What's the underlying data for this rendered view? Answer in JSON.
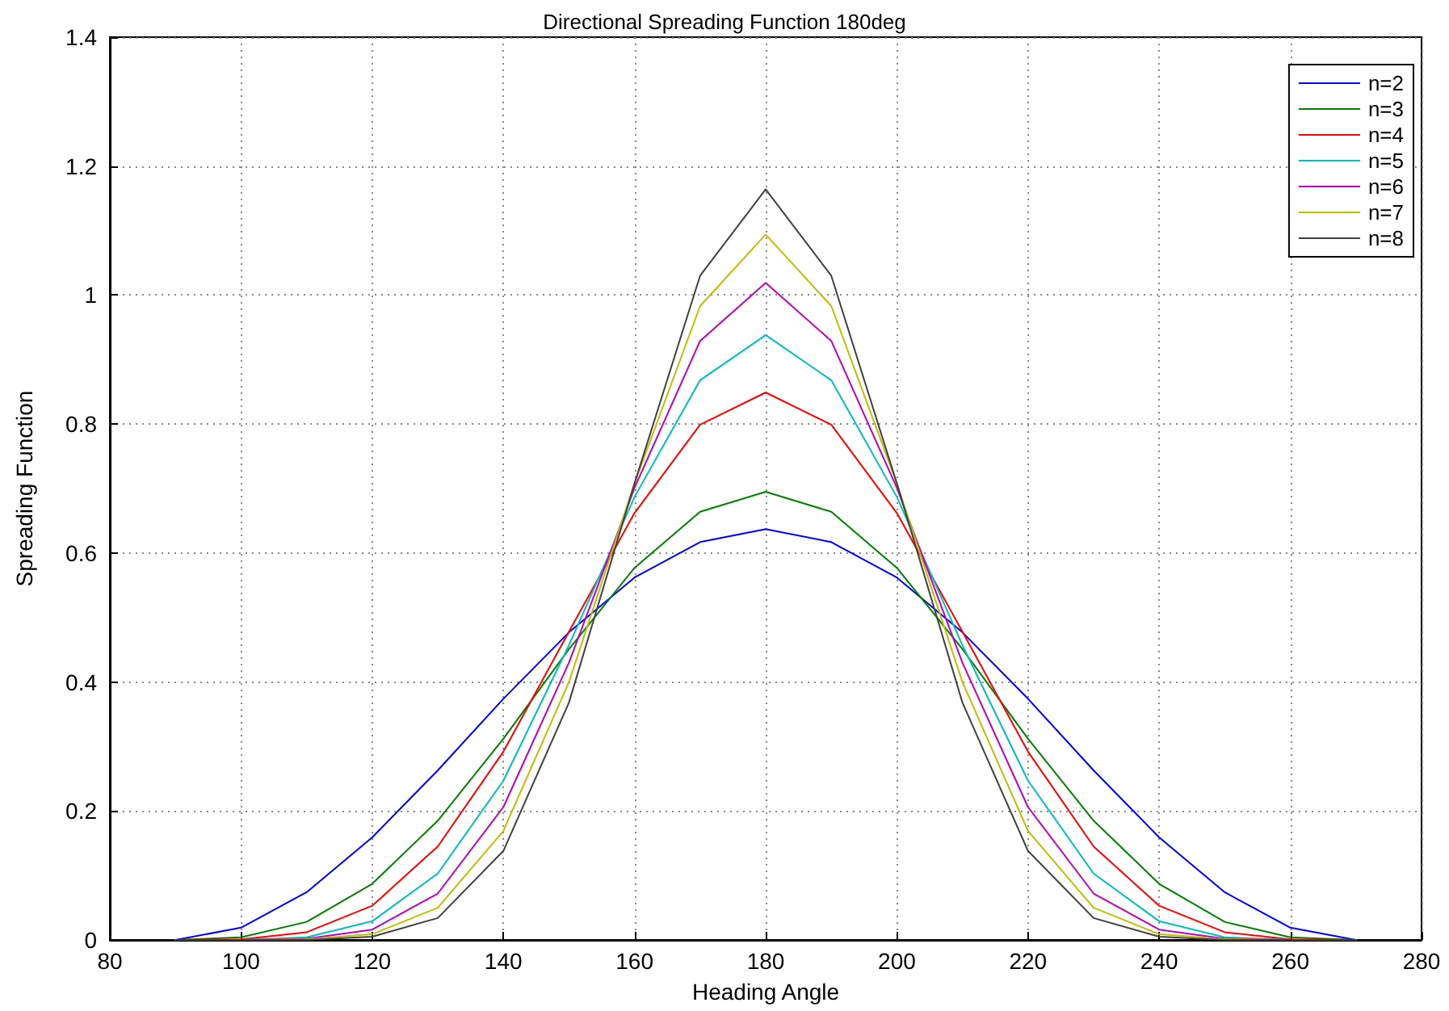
{
  "chart_data": {
    "type": "line",
    "title": "Directional Spreading Function 180deg",
    "xlabel": "Heading Angle",
    "ylabel": "Spreading Function",
    "x": [
      90,
      100,
      110,
      120,
      130,
      140,
      150,
      160,
      170,
      180,
      190,
      200,
      210,
      220,
      230,
      240,
      250,
      260,
      270
    ],
    "series": [
      {
        "name": "n=2",
        "color": "#0000ff",
        "values": [
          0,
          0.019,
          0.074,
          0.159,
          0.263,
          0.374,
          0.477,
          0.562,
          0.617,
          0.637,
          0.617,
          0.562,
          0.477,
          0.374,
          0.263,
          0.159,
          0.074,
          0.019,
          0
        ]
      },
      {
        "name": "n=3",
        "color": "#008000",
        "values": [
          0,
          0.004,
          0.028,
          0.087,
          0.185,
          0.312,
          0.451,
          0.577,
          0.664,
          0.695,
          0.664,
          0.577,
          0.451,
          0.312,
          0.185,
          0.087,
          0.028,
          0.004,
          0
        ]
      },
      {
        "name": "n=4",
        "color": "#ff0000",
        "values": [
          0,
          0.001,
          0.012,
          0.053,
          0.145,
          0.292,
          0.478,
          0.662,
          0.799,
          0.849,
          0.799,
          0.662,
          0.478,
          0.292,
          0.145,
          0.053,
          0.012,
          0.001,
          0
        ]
      },
      {
        "name": "n=5",
        "color": "#00bfbf",
        "values": [
          0,
          0,
          0.004,
          0.029,
          0.103,
          0.247,
          0.457,
          0.687,
          0.868,
          0.938,
          0.868,
          0.687,
          0.457,
          0.247,
          0.103,
          0.029,
          0.004,
          0,
          0
        ]
      },
      {
        "name": "n=6",
        "color": "#bf00bf",
        "values": [
          0,
          0,
          0.002,
          0.016,
          0.072,
          0.206,
          0.43,
          0.701,
          0.929,
          1.019,
          0.929,
          0.701,
          0.43,
          0.206,
          0.072,
          0.016,
          0.002,
          0,
          0
        ]
      },
      {
        "name": "n=7",
        "color": "#bfbf00",
        "values": [
          0,
          0,
          0.001,
          0.009,
          0.05,
          0.169,
          0.4,
          0.708,
          0.983,
          1.094,
          0.983,
          0.708,
          0.4,
          0.169,
          0.05,
          0.009,
          0.001,
          0,
          0
        ]
      },
      {
        "name": "n=8",
        "color": "#404040",
        "values": [
          0,
          0,
          0,
          0.005,
          0.034,
          0.138,
          0.368,
          0.708,
          1.03,
          1.164,
          1.03,
          0.708,
          0.368,
          0.138,
          0.034,
          0.005,
          0,
          0,
          0
        ]
      }
    ],
    "xlim": [
      80,
      280
    ],
    "xticks": [
      80,
      100,
      120,
      140,
      160,
      180,
      200,
      220,
      240,
      260,
      280
    ],
    "ylim": [
      0,
      1.4
    ],
    "yticks": [
      0,
      0.2,
      0.4,
      0.6,
      0.8,
      1,
      1.2,
      1.4
    ],
    "grid": true,
    "legend": "top right",
    "marker": "none",
    "line_style": "solid"
  }
}
